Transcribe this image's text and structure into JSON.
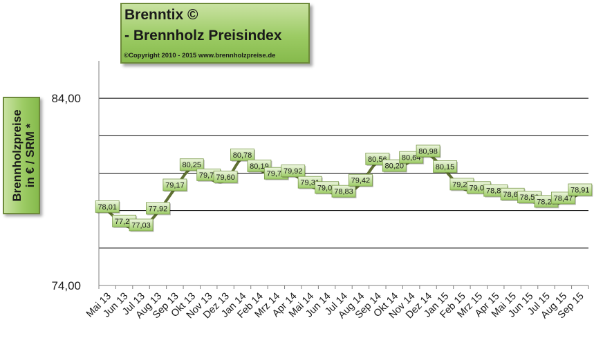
{
  "title": {
    "line1": "Brenntix ©",
    "line2": " - Brennholz Preisindex",
    "copyright": "©Copyright 2010 - 2015  www.brennholzpreise.de"
  },
  "chart_data": {
    "type": "line",
    "title": "Brenntix © - Brennholz Preisindex",
    "ylabel": "Brennholzpreise in € / SRM *",
    "ylabel_lines": [
      "Brennholzpreise",
      "in € / SRM *"
    ],
    "xlabel": "",
    "ylim": [
      74,
      86
    ],
    "y_ticks": [
      74,
      76,
      78,
      80,
      82,
      84
    ],
    "y_tick_labels": [
      "74,00",
      "84,00"
    ],
    "grid": true,
    "legend": "none",
    "categories": [
      "Mai 13",
      "Jun 13",
      "Jul 13",
      "Aug 13",
      "Sep 13",
      "Okt 13",
      "Nov 13",
      "Dez 13",
      "Jan 14",
      "Feb 14",
      "Mrz 14",
      "Apr 14",
      "Mai 14",
      "Jun 14",
      "Jul 14",
      "Aug 14",
      "Sep 14",
      "Okt 14",
      "Nov 14",
      "Dez 14",
      "Jan 15",
      "Feb 15",
      "Mrz 15",
      "Apr 15",
      "Mai 15",
      "Jun 15",
      "Jul 15",
      "Aug 15",
      "Sep 15"
    ],
    "values": [
      78.01,
      77.24,
      77.03,
      77.92,
      79.17,
      80.25,
      79.71,
      79.6,
      80.78,
      80.19,
      79.79,
      79.92,
      79.31,
      79.03,
      78.83,
      79.42,
      80.56,
      80.2,
      80.64,
      80.98,
      80.15,
      79.21,
      79.03,
      78.87,
      78.68,
      78.52,
      78.29,
      78.47,
      78.91
    ],
    "data_labels": [
      "78,01",
      "77,24",
      "77,03",
      "77,92",
      "79,17",
      "80,25",
      "79,71",
      "79,60",
      "80,78",
      "80,19",
      "79,79",
      "79,92",
      "79,31",
      "79,03",
      "78,83",
      "79,42",
      "80,56",
      "80,20",
      "80,64",
      "80,98",
      "80,15",
      "79,21",
      "79,03",
      "78,87",
      "78,68",
      "78,52",
      "78,29",
      "78,47",
      "78,91"
    ],
    "colors": {
      "line": "#5f6f32",
      "grid": "#000000",
      "label_fill_top": "#e8f3d6",
      "label_fill_bottom": "#9dcc66",
      "label_border": "#7a9a4a",
      "box_fill": "#9ccb64",
      "box_border": "#6d8a3a"
    }
  }
}
